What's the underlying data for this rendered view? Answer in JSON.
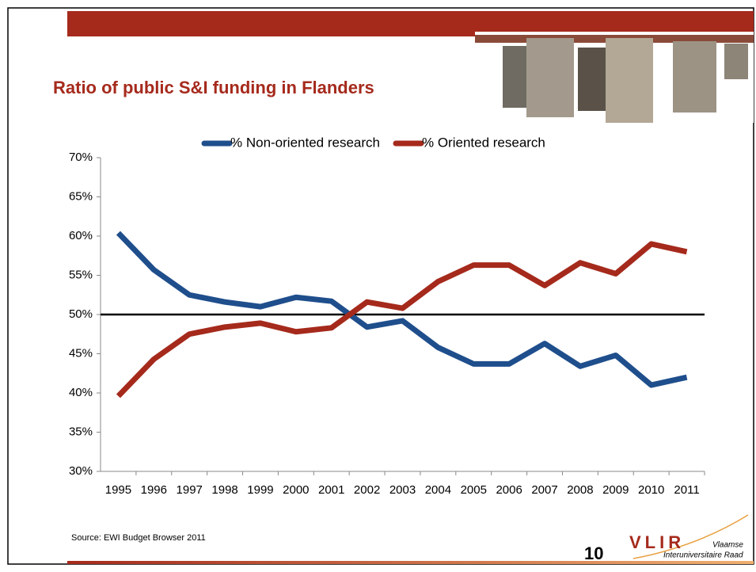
{
  "chart_data": {
    "type": "line",
    "title": "Ratio of public S&I funding in Flanders",
    "categories": [
      "1995",
      "1996",
      "1997",
      "1998",
      "1999",
      "2000",
      "2001",
      "2002",
      "2003",
      "2004",
      "2005",
      "2006",
      "2007",
      "2008",
      "2009",
      "2010",
      "2011"
    ],
    "series": [
      {
        "name": "% Non-oriented research",
        "color": "#1f4e8c",
        "values": [
          60.4,
          55.7,
          52.5,
          51.6,
          51.0,
          52.2,
          51.7,
          48.4,
          49.2,
          45.8,
          43.7,
          43.7,
          46.3,
          43.4,
          44.8,
          41.0,
          42.0
        ]
      },
      {
        "name": "% Oriented research",
        "color": "#a52a1c",
        "values": [
          39.6,
          44.3,
          47.5,
          48.4,
          48.9,
          47.8,
          48.3,
          51.6,
          50.8,
          54.2,
          56.3,
          56.3,
          53.7,
          56.6,
          55.2,
          59.0,
          58.0
        ]
      }
    ],
    "ylim": [
      30,
      70
    ],
    "yticks": [
      {
        "value": 30,
        "label": "30%"
      },
      {
        "value": 35,
        "label": "35%"
      },
      {
        "value": 40,
        "label": "40%"
      },
      {
        "value": 45,
        "label": "45%"
      },
      {
        "value": 50,
        "label": "50%"
      },
      {
        "value": 55,
        "label": "55%"
      },
      {
        "value": 60,
        "label": "60%"
      },
      {
        "value": 65,
        "label": "65%"
      },
      {
        "value": 70,
        "label": "70%"
      }
    ],
    "reference_line": 50,
    "legend": "top",
    "grid": false
  },
  "source": "Source: EWI Budget Browser 2011",
  "page_number": "10",
  "logo": {
    "mark": "VLIR",
    "line1": "Vlaamse",
    "line2": "Interuniversitaire Raad"
  }
}
